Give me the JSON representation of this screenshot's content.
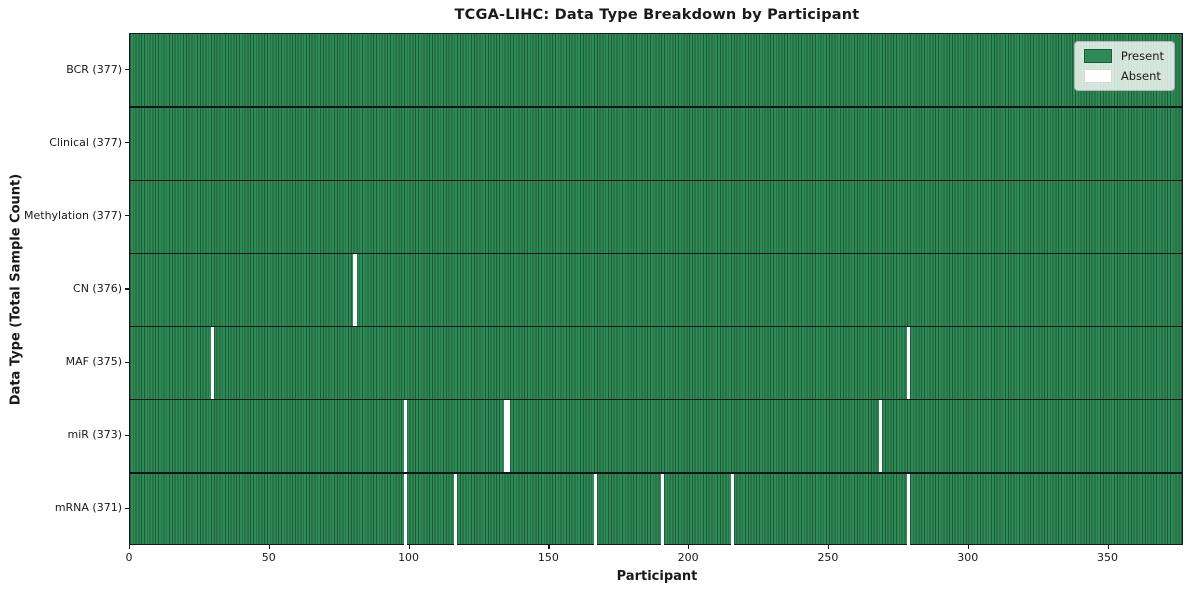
{
  "chart_data": {
    "type": "heatmap",
    "title": "TCGA-LIHC: Data Type Breakdown by Participant",
    "xlabel": "Participant",
    "ylabel": "Data Type (Total Sample Count)",
    "x_ticks": [
      0,
      50,
      100,
      150,
      200,
      250,
      300,
      350
    ],
    "xlim": [
      0,
      377
    ],
    "n_participants": 377,
    "grid": false,
    "legend_position": "upper right",
    "rows": [
      {
        "label": "BCR (377)",
        "data_type": "BCR",
        "present_count": 377,
        "absent_count": 0,
        "absent_indices": []
      },
      {
        "label": "Clinical (377)",
        "data_type": "Clinical",
        "present_count": 377,
        "absent_count": 0,
        "absent_indices": []
      },
      {
        "label": "Methylation (377)",
        "data_type": "Methylation",
        "present_count": 377,
        "absent_count": 0,
        "absent_indices": []
      },
      {
        "label": "CN (376)",
        "data_type": "CN",
        "present_count": 376,
        "absent_count": 1,
        "absent_indices": [
          80
        ]
      },
      {
        "label": "MAF (375)",
        "data_type": "MAF",
        "present_count": 375,
        "absent_count": 2,
        "absent_indices": [
          29,
          278
        ]
      },
      {
        "label": "miR (373)",
        "data_type": "miR",
        "present_count": 373,
        "absent_count": 4,
        "absent_indices": [
          98,
          134,
          135,
          268
        ]
      },
      {
        "label": "mRNA (371)",
        "data_type": "mRNA",
        "present_count": 371,
        "absent_count": 6,
        "absent_indices": [
          98,
          116,
          166,
          190,
          215,
          278
        ]
      }
    ],
    "legend": [
      {
        "label": "Present",
        "color": "#2e8b57"
      },
      {
        "label": "Absent",
        "color": "#ffffff"
      }
    ],
    "colors": {
      "present": "#2e8b57",
      "present_edge": "#1d5c39",
      "absent": "#ffffff",
      "row_separator": "#141414",
      "plot_border": "#1a1a1a",
      "text": "#1a1a1a",
      "legend_border": "#b0b5b0"
    }
  }
}
